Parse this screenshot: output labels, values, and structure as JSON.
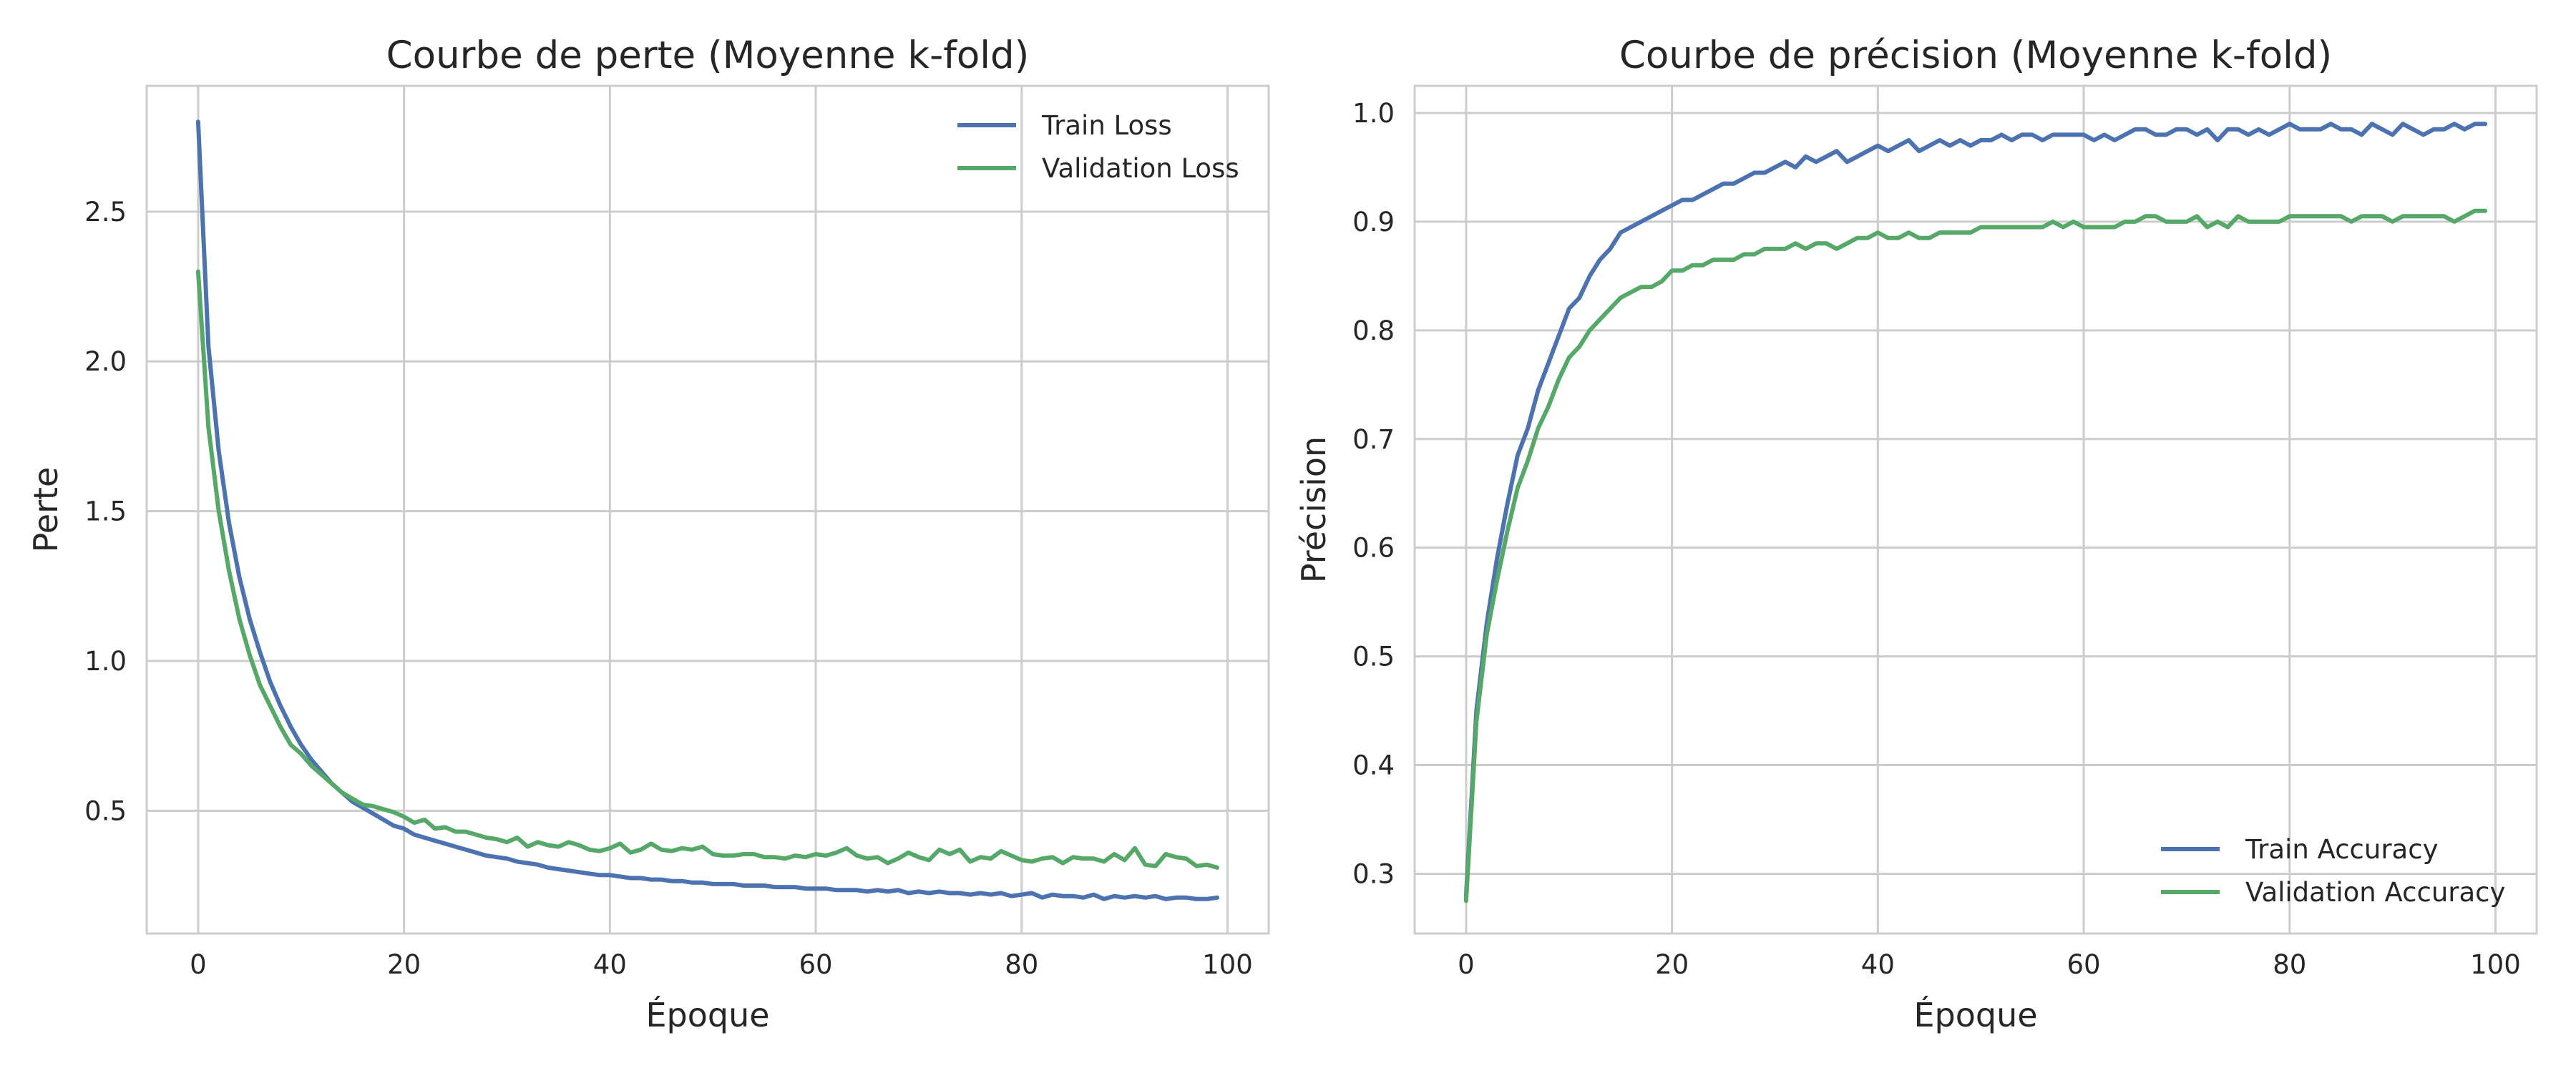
{
  "colors": {
    "train": "#4c72b0",
    "validation": "#55a868",
    "grid": "#cccccc"
  },
  "chart_data": [
    {
      "type": "line",
      "title": "Courbe de perte (Moyenne k-fold)",
      "xlabel": "Époque",
      "ylabel": "Perte",
      "xlim": [
        -5,
        104
      ],
      "ylim": [
        0.09,
        2.92
      ],
      "xticks": [
        0,
        20,
        40,
        60,
        80,
        100
      ],
      "yticks": [
        0.5,
        1.0,
        1.5,
        2.0,
        2.5
      ],
      "xtick_labels": [
        "0",
        "20",
        "40",
        "60",
        "80",
        "100"
      ],
      "ytick_labels": [
        "0.5",
        "1.0",
        "1.5",
        "2.0",
        "2.5"
      ],
      "grid": true,
      "legend_position": "top-right",
      "series": [
        {
          "name": "Train Loss",
          "color": "#4c72b0",
          "x": [
            0,
            1,
            2,
            3,
            4,
            5,
            6,
            7,
            8,
            9,
            10,
            11,
            12,
            13,
            14,
            15,
            16,
            17,
            18,
            19,
            20,
            21,
            22,
            23,
            24,
            25,
            26,
            27,
            28,
            29,
            30,
            31,
            32,
            33,
            34,
            35,
            36,
            37,
            38,
            39,
            40,
            41,
            42,
            43,
            44,
            45,
            46,
            47,
            48,
            49,
            50,
            51,
            52,
            53,
            54,
            55,
            56,
            57,
            58,
            59,
            60,
            61,
            62,
            63,
            64,
            65,
            66,
            67,
            68,
            69,
            70,
            71,
            72,
            73,
            74,
            75,
            76,
            77,
            78,
            79,
            80,
            81,
            82,
            83,
            84,
            85,
            86,
            87,
            88,
            89,
            90,
            91,
            92,
            93,
            94,
            95,
            96,
            97,
            98,
            99
          ],
          "y": [
            2.8,
            2.05,
            1.7,
            1.46,
            1.28,
            1.14,
            1.03,
            0.93,
            0.85,
            0.78,
            0.72,
            0.67,
            0.63,
            0.59,
            0.56,
            0.53,
            0.51,
            0.49,
            0.47,
            0.45,
            0.44,
            0.42,
            0.41,
            0.4,
            0.39,
            0.38,
            0.37,
            0.36,
            0.35,
            0.345,
            0.34,
            0.33,
            0.325,
            0.32,
            0.31,
            0.305,
            0.3,
            0.295,
            0.29,
            0.285,
            0.285,
            0.28,
            0.275,
            0.275,
            0.27,
            0.27,
            0.265,
            0.265,
            0.26,
            0.26,
            0.255,
            0.255,
            0.255,
            0.25,
            0.25,
            0.25,
            0.245,
            0.245,
            0.245,
            0.24,
            0.24,
            0.24,
            0.235,
            0.235,
            0.235,
            0.23,
            0.235,
            0.23,
            0.235,
            0.225,
            0.23,
            0.225,
            0.23,
            0.225,
            0.225,
            0.22,
            0.225,
            0.22,
            0.225,
            0.215,
            0.22,
            0.225,
            0.21,
            0.22,
            0.215,
            0.215,
            0.21,
            0.22,
            0.205,
            0.215,
            0.21,
            0.215,
            0.21,
            0.215,
            0.205,
            0.21,
            0.21,
            0.205,
            0.205,
            0.21
          ]
        },
        {
          "name": "Validation Loss",
          "color": "#55a868",
          "x": [
            0,
            1,
            2,
            3,
            4,
            5,
            6,
            7,
            8,
            9,
            10,
            11,
            12,
            13,
            14,
            15,
            16,
            17,
            18,
            19,
            20,
            21,
            22,
            23,
            24,
            25,
            26,
            27,
            28,
            29,
            30,
            31,
            32,
            33,
            34,
            35,
            36,
            37,
            38,
            39,
            40,
            41,
            42,
            43,
            44,
            45,
            46,
            47,
            48,
            49,
            50,
            51,
            52,
            53,
            54,
            55,
            56,
            57,
            58,
            59,
            60,
            61,
            62,
            63,
            64,
            65,
            66,
            67,
            68,
            69,
            70,
            71,
            72,
            73,
            74,
            75,
            76,
            77,
            78,
            79,
            80,
            81,
            82,
            83,
            84,
            85,
            86,
            87,
            88,
            89,
            90,
            91,
            92,
            93,
            94,
            95,
            96,
            97,
            98,
            99
          ],
          "y": [
            2.3,
            1.78,
            1.5,
            1.3,
            1.14,
            1.02,
            0.92,
            0.85,
            0.78,
            0.72,
            0.69,
            0.65,
            0.62,
            0.59,
            0.56,
            0.54,
            0.52,
            0.515,
            0.505,
            0.495,
            0.48,
            0.46,
            0.47,
            0.44,
            0.445,
            0.43,
            0.43,
            0.42,
            0.41,
            0.405,
            0.395,
            0.41,
            0.38,
            0.395,
            0.385,
            0.38,
            0.395,
            0.385,
            0.37,
            0.365,
            0.375,
            0.39,
            0.36,
            0.37,
            0.39,
            0.37,
            0.365,
            0.375,
            0.37,
            0.38,
            0.355,
            0.35,
            0.35,
            0.355,
            0.355,
            0.345,
            0.345,
            0.34,
            0.35,
            0.345,
            0.355,
            0.35,
            0.36,
            0.375,
            0.35,
            0.34,
            0.345,
            0.325,
            0.34,
            0.36,
            0.345,
            0.335,
            0.37,
            0.355,
            0.37,
            0.33,
            0.345,
            0.34,
            0.365,
            0.35,
            0.335,
            0.33,
            0.34,
            0.345,
            0.325,
            0.345,
            0.34,
            0.34,
            0.33,
            0.355,
            0.335,
            0.375,
            0.32,
            0.315,
            0.355,
            0.345,
            0.34,
            0.315,
            0.32,
            0.31
          ]
        }
      ]
    },
    {
      "type": "line",
      "title": "Courbe de précision (Moyenne k-fold)",
      "xlabel": "Époque",
      "ylabel": "Précision",
      "xlim": [
        -5,
        104
      ],
      "ylim": [
        0.245,
        1.025
      ],
      "xticks": [
        0,
        20,
        40,
        60,
        80,
        100
      ],
      "yticks": [
        0.3,
        0.4,
        0.5,
        0.6,
        0.7,
        0.8,
        0.9,
        1.0
      ],
      "xtick_labels": [
        "0",
        "20",
        "40",
        "60",
        "80",
        "100"
      ],
      "ytick_labels": [
        "0.3",
        "0.4",
        "0.5",
        "0.6",
        "0.7",
        "0.8",
        "0.9",
        "1.0"
      ],
      "grid": true,
      "legend_position": "bottom-right",
      "series": [
        {
          "name": "Train Accuracy",
          "color": "#4c72b0",
          "x": [
            0,
            1,
            2,
            3,
            4,
            5,
            6,
            7,
            8,
            9,
            10,
            11,
            12,
            13,
            14,
            15,
            16,
            17,
            18,
            19,
            20,
            21,
            22,
            23,
            24,
            25,
            26,
            27,
            28,
            29,
            30,
            31,
            32,
            33,
            34,
            35,
            36,
            37,
            38,
            39,
            40,
            41,
            42,
            43,
            44,
            45,
            46,
            47,
            48,
            49,
            50,
            51,
            52,
            53,
            54,
            55,
            56,
            57,
            58,
            59,
            60,
            61,
            62,
            63,
            64,
            65,
            66,
            67,
            68,
            69,
            70,
            71,
            72,
            73,
            74,
            75,
            76,
            77,
            78,
            79,
            80,
            81,
            82,
            83,
            84,
            85,
            86,
            87,
            88,
            89,
            90,
            91,
            92,
            93,
            94,
            95,
            96,
            97,
            98,
            99
          ],
          "y": [
            0.28,
            0.45,
            0.53,
            0.59,
            0.64,
            0.685,
            0.71,
            0.745,
            0.77,
            0.795,
            0.82,
            0.83,
            0.85,
            0.865,
            0.875,
            0.89,
            0.895,
            0.9,
            0.905,
            0.91,
            0.915,
            0.92,
            0.92,
            0.925,
            0.93,
            0.935,
            0.935,
            0.94,
            0.945,
            0.945,
            0.95,
            0.955,
            0.95,
            0.96,
            0.955,
            0.96,
            0.965,
            0.955,
            0.96,
            0.965,
            0.97,
            0.965,
            0.97,
            0.975,
            0.965,
            0.97,
            0.975,
            0.97,
            0.975,
            0.97,
            0.975,
            0.975,
            0.98,
            0.975,
            0.98,
            0.98,
            0.975,
            0.98,
            0.98,
            0.98,
            0.98,
            0.975,
            0.98,
            0.975,
            0.98,
            0.985,
            0.985,
            0.98,
            0.98,
            0.985,
            0.985,
            0.98,
            0.985,
            0.975,
            0.985,
            0.985,
            0.98,
            0.985,
            0.98,
            0.985,
            0.99,
            0.985,
            0.985,
            0.985,
            0.99,
            0.985,
            0.985,
            0.98,
            0.99,
            0.985,
            0.98,
            0.99,
            0.985,
            0.98,
            0.985,
            0.985,
            0.99,
            0.985,
            0.99,
            0.99
          ]
        },
        {
          "name": "Validation Accuracy",
          "color": "#55a868",
          "x": [
            0,
            1,
            2,
            3,
            4,
            5,
            6,
            7,
            8,
            9,
            10,
            11,
            12,
            13,
            14,
            15,
            16,
            17,
            18,
            19,
            20,
            21,
            22,
            23,
            24,
            25,
            26,
            27,
            28,
            29,
            30,
            31,
            32,
            33,
            34,
            35,
            36,
            37,
            38,
            39,
            40,
            41,
            42,
            43,
            44,
            45,
            46,
            47,
            48,
            49,
            50,
            51,
            52,
            53,
            54,
            55,
            56,
            57,
            58,
            59,
            60,
            61,
            62,
            63,
            64,
            65,
            66,
            67,
            68,
            69,
            70,
            71,
            72,
            73,
            74,
            75,
            76,
            77,
            78,
            79,
            80,
            81,
            82,
            83,
            84,
            85,
            86,
            87,
            88,
            89,
            90,
            91,
            92,
            93,
            94,
            95,
            96,
            97,
            98,
            99
          ],
          "y": [
            0.275,
            0.44,
            0.52,
            0.57,
            0.615,
            0.655,
            0.68,
            0.71,
            0.73,
            0.755,
            0.775,
            0.785,
            0.8,
            0.81,
            0.82,
            0.83,
            0.835,
            0.84,
            0.84,
            0.845,
            0.855,
            0.855,
            0.86,
            0.86,
            0.865,
            0.865,
            0.865,
            0.87,
            0.87,
            0.875,
            0.875,
            0.875,
            0.88,
            0.875,
            0.88,
            0.88,
            0.875,
            0.88,
            0.885,
            0.885,
            0.89,
            0.885,
            0.885,
            0.89,
            0.885,
            0.885,
            0.89,
            0.89,
            0.89,
            0.89,
            0.895,
            0.895,
            0.895,
            0.895,
            0.895,
            0.895,
            0.895,
            0.9,
            0.895,
            0.9,
            0.895,
            0.895,
            0.895,
            0.895,
            0.9,
            0.9,
            0.905,
            0.905,
            0.9,
            0.9,
            0.9,
            0.905,
            0.895,
            0.9,
            0.895,
            0.905,
            0.9,
            0.9,
            0.9,
            0.9,
            0.905,
            0.905,
            0.905,
            0.905,
            0.905,
            0.905,
            0.9,
            0.905,
            0.905,
            0.905,
            0.9,
            0.905,
            0.905,
            0.905,
            0.905,
            0.905,
            0.9,
            0.905,
            0.91,
            0.91
          ]
        }
      ]
    }
  ]
}
